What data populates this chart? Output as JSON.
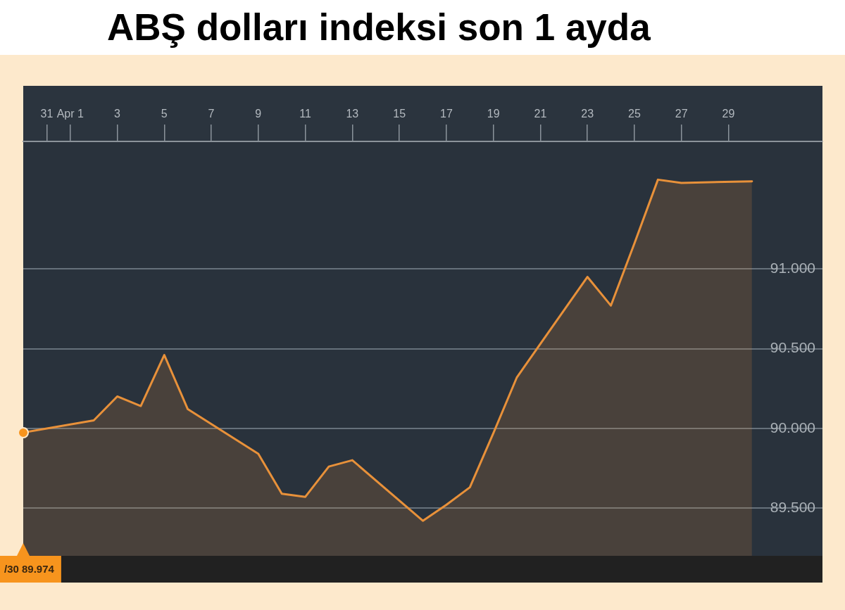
{
  "chart_data": {
    "type": "area",
    "title": "ABŞ dolları indeksi son 1 ayda",
    "x": [
      "--03-30",
      "--04-02",
      "--04-03",
      "--04-04",
      "--04-05",
      "--04-06",
      "--04-09",
      "--04-10",
      "--04-11",
      "--04-12",
      "--04-13",
      "--04-16",
      "--04-17",
      "--04-18",
      "--04-19",
      "--04-20",
      "--04-23",
      "--04-24",
      "--04-25",
      "--04-26",
      "--04-27",
      "--04-30"
    ],
    "series": [
      {
        "color": "#e8913a",
        "values": [
          89.974,
          90.05,
          90.2,
          90.14,
          90.46,
          90.12,
          89.84,
          89.59,
          89.57,
          89.76,
          89.8,
          89.42,
          89.52,
          89.63,
          89.97,
          90.32,
          90.95,
          90.77,
          91.16,
          91.56,
          91.54,
          91.55
        ]
      }
    ],
    "xlim": [
      "--03-30",
      "--05-03"
    ],
    "xticks": [
      {
        "value": "--03-31",
        "label": "31"
      },
      {
        "value": "--04-01",
        "label": "Apr 1"
      },
      {
        "value": "--04-03",
        "label": "3"
      },
      {
        "value": "--04-05",
        "label": "5"
      },
      {
        "value": "--04-07",
        "label": "7"
      },
      {
        "value": "--04-09",
        "label": "9"
      },
      {
        "value": "--04-11",
        "label": "11"
      },
      {
        "value": "--04-13",
        "label": "13"
      },
      {
        "value": "--04-15",
        "label": "15"
      },
      {
        "value": "--04-17",
        "label": "17"
      },
      {
        "value": "--04-19",
        "label": "19"
      },
      {
        "value": "--04-21",
        "label": "21"
      },
      {
        "value": "--04-23",
        "label": "23"
      },
      {
        "value": "--04-25",
        "label": "25"
      },
      {
        "value": "--04-27",
        "label": "27"
      },
      {
        "value": "--04-29",
        "label": "29"
      }
    ],
    "ylim": [
      89.2,
      91.8
    ],
    "yticks": [
      {
        "value": 89.5,
        "label": "89.500"
      },
      {
        "value": 90,
        "label": "90.000"
      },
      {
        "value": 90.5,
        "label": "90.500"
      },
      {
        "value": 91,
        "label": "91.000"
      }
    ],
    "grid": "y",
    "annotations": [
      "/30 89.974"
    ]
  }
}
